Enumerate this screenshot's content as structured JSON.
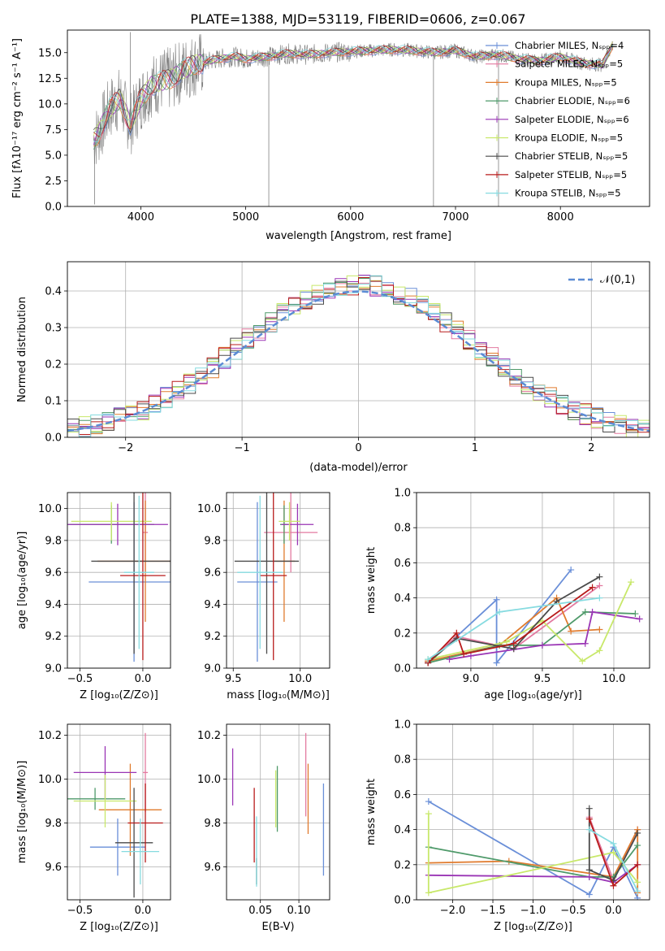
{
  "figure": {
    "title": "PLATE=1388, MJD=53119, FIBERID=0606, z=0.067"
  },
  "colors": {
    "series": [
      "#6a8fd8",
      "#e37aa0",
      "#e07b2e",
      "#4f9a6a",
      "#9a35b5",
      "#c8e86a",
      "#4a4a4a",
      "#b81b1b",
      "#86dbe0"
    ],
    "data_spectrum": "#808080",
    "grid": "#b0b0b0",
    "normal_curve": "#5b8bd4"
  },
  "chart_data": [
    {
      "id": "spectrum",
      "type": "line",
      "xlabel": "wavelength [Angstrom, rest frame]",
      "ylabel": "Flux [fλ10⁻¹⁷ erg cm⁻² s⁻¹ A⁻¹]",
      "xlim": [
        3300,
        8850
      ],
      "ylim": [
        0,
        17.2
      ],
      "xticks": [
        "4000",
        "5000",
        "6000",
        "7000",
        "8000"
      ],
      "yticks": [
        "0.0",
        "2.5",
        "5.0",
        "7.5",
        "10.0",
        "12.5",
        "15.0"
      ],
      "legend_position": "upper right",
      "legend": [
        "Chabrier MILES, Nₛₚₚ=4",
        "Salpeter MILES, Nₛₚₚ=5",
        "Kroupa MILES, Nₛₚₚ=5",
        "Chabrier ELODIE, Nₛₚₚ=6",
        "Salpeter ELODIE, Nₛₚₚ=6",
        "Kroupa ELODIE, Nₛₚₚ=5",
        "Chabrier STELIB, Nₛₚₚ=5",
        "Salpeter STELIB, Nₛₚₚ=5",
        "Kroupa STELIB, Nₛₚₚ=5"
      ],
      "model_envelope": {
        "x": [
          3550,
          3600,
          3700,
          3800,
          3900,
          4000,
          4100,
          4200,
          4300,
          4400,
          4500,
          4600,
          4700,
          4800,
          4900,
          5000,
          5200,
          5400,
          5600,
          5800,
          6000,
          6200,
          6400,
          6600,
          6800,
          7000,
          7200,
          7400,
          7600,
          7800,
          8000,
          8200,
          8400,
          8500
        ],
        "y": [
          6.5,
          7.2,
          9.5,
          10.5,
          8.0,
          10.5,
          11.8,
          12.2,
          12.5,
          13.3,
          13.8,
          14.0,
          14.3,
          14.5,
          14.6,
          14.4,
          14.6,
          14.9,
          14.8,
          15.0,
          15.1,
          15.2,
          15.3,
          15.2,
          15.0,
          15.2,
          14.6,
          14.8,
          14.4,
          14.2,
          14.6,
          14.0,
          13.8,
          15.8
        ]
      },
      "data_spikes": [
        {
          "x": 3560,
          "y": 0.2
        },
        {
          "x": 3900,
          "y": 17.0
        },
        {
          "x": 5220,
          "y": 0.0
        },
        {
          "x": 6790,
          "y": 0.0
        },
        {
          "x": 7410,
          "y": 0.0
        }
      ]
    },
    {
      "id": "residuals",
      "type": "step-histogram",
      "xlabel": "(data-model)/error",
      "ylabel": "Normed distribution",
      "xlim": [
        -2.5,
        2.5
      ],
      "ylim": [
        0,
        0.48
      ],
      "xticks": [
        "−2",
        "−1",
        "0",
        "1",
        "2"
      ],
      "yticks": [
        "0.0",
        "0.1",
        "0.2",
        "0.3",
        "0.4"
      ],
      "legend": [
        "𝒩(0,1)"
      ],
      "legend_position": "upper right",
      "bin_width": 0.1
    },
    {
      "id": "age_vs_Z",
      "type": "errorbar",
      "xlabel": "Z [log₁₀(Z/Z⊙)]",
      "ylabel": "age  [log₁₀(age/yr)]",
      "xlim": [
        -0.6,
        0.22
      ],
      "ylim": [
        9.0,
        10.1
      ],
      "xticks": [
        "−0.5",
        "0.0"
      ],
      "yticks": [
        "9.0",
        "9.2",
        "9.4",
        "9.6",
        "9.8",
        "10.0"
      ],
      "points": [
        {
          "series": 0,
          "x": -0.07,
          "xerr": 0.36,
          "y": 9.54,
          "yerr": 0.5
        },
        {
          "series": 1,
          "x": 0.02,
          "xerr": 0.02,
          "y": 9.85,
          "yerr": 0.25
        },
        {
          "series": 2,
          "x": 0.02,
          "xerr": 0.38,
          "y": 9.67,
          "yerr": 0.38
        },
        {
          "series": 3,
          "x": -0.25,
          "xerr": 0.34,
          "y": 9.9,
          "yerr": 0.12
        },
        {
          "series": 4,
          "x": -0.2,
          "xerr": 0.4,
          "y": 9.9,
          "yerr": 0.13
        },
        {
          "series": 5,
          "x": -0.25,
          "xerr": 0.32,
          "y": 9.92,
          "yerr": 0.12
        },
        {
          "series": 6,
          "x": -0.07,
          "xerr": 0.34,
          "y": 9.67,
          "yerr": 0.58
        },
        {
          "series": 7,
          "x": 0.0,
          "xerr": 0.18,
          "y": 9.58,
          "yerr": 0.53
        },
        {
          "series": 8,
          "x": -0.03,
          "xerr": 0.12,
          "y": 9.6,
          "yerr": 0.48
        }
      ]
    },
    {
      "id": "age_vs_mass",
      "type": "errorbar",
      "xlabel": "mass [log₁₀(M/M⊙)]",
      "xlim": [
        9.45,
        10.22
      ],
      "ylim": [
        9.0,
        10.1
      ],
      "xticks": [
        "9.5",
        "10.0"
      ],
      "yticks": [
        "9.0",
        "9.2",
        "9.4",
        "9.6",
        "9.8",
        "10.0"
      ],
      "points": [
        {
          "series": 0,
          "x": 9.68,
          "xerr": 0.15,
          "y": 9.54,
          "yerr": 0.5
        },
        {
          "series": 1,
          "x": 9.93,
          "xerr": 0.2,
          "y": 9.85,
          "yerr": 0.25
        },
        {
          "series": 2,
          "x": 9.88,
          "xerr": 0.08,
          "y": 9.67,
          "yerr": 0.38
        },
        {
          "series": 3,
          "x": 9.88,
          "xerr": 0.03,
          "y": 9.9,
          "yerr": 0.12
        },
        {
          "series": 4,
          "x": 9.98,
          "xerr": 0.12,
          "y": 9.9,
          "yerr": 0.13
        },
        {
          "series": 5,
          "x": 9.92,
          "xerr": 0.08,
          "y": 9.92,
          "yerr": 0.12
        },
        {
          "series": 6,
          "x": 9.75,
          "xerr": 0.24,
          "y": 9.67,
          "yerr": 0.58
        },
        {
          "series": 7,
          "x": 9.8,
          "xerr": 0.1,
          "y": 9.58,
          "yerr": 0.53
        },
        {
          "series": 8,
          "x": 9.7,
          "xerr": 0.17,
          "y": 9.6,
          "yerr": 0.48
        }
      ]
    },
    {
      "id": "weight_vs_age",
      "type": "line",
      "xlabel": "age  [log₁₀(age/yr)]",
      "ylabel": "mass weight",
      "xlim": [
        8.62,
        10.25
      ],
      "ylim": [
        0,
        1.0
      ],
      "xticks": [
        "9.0",
        "9.5",
        "10.0"
      ],
      "yticks": [
        "0.0",
        "0.2",
        "0.4",
        "0.6",
        "0.8",
        "1.0"
      ],
      "series": [
        {
          "x": [
            8.7,
            9.18,
            9.18,
            9.7
          ],
          "y": [
            0.03,
            0.39,
            0.03,
            0.56
          ]
        },
        {
          "x": [
            8.7,
            8.9,
            9.3,
            9.9
          ],
          "y": [
            0.04,
            0.18,
            0.11,
            0.47
          ]
        },
        {
          "x": [
            8.7,
            9.2,
            9.6,
            9.7,
            9.9
          ],
          "y": [
            0.04,
            0.13,
            0.4,
            0.21,
            0.22
          ]
        },
        {
          "x": [
            8.7,
            9.2,
            9.5,
            9.8,
            10.15
          ],
          "y": [
            0.03,
            0.13,
            0.13,
            0.32,
            0.31
          ]
        },
        {
          "x": [
            8.85,
            9.0,
            9.5,
            9.8,
            9.85,
            10.18
          ],
          "y": [
            0.05,
            0.07,
            0.13,
            0.14,
            0.32,
            0.28
          ]
        },
        {
          "x": [
            8.7,
            9.25,
            9.5,
            9.78,
            9.9,
            10.12
          ],
          "y": [
            0.05,
            0.15,
            0.27,
            0.04,
            0.1,
            0.49
          ]
        },
        {
          "x": [
            8.7,
            8.9,
            9.3,
            9.6,
            9.9
          ],
          "y": [
            0.03,
            0.17,
            0.11,
            0.38,
            0.52
          ]
        },
        {
          "x": [
            8.7,
            8.9,
            8.95,
            9.3,
            9.85
          ],
          "y": [
            0.03,
            0.2,
            0.08,
            0.14,
            0.46
          ]
        },
        {
          "x": [
            8.7,
            9.2,
            9.9
          ],
          "y": [
            0.05,
            0.32,
            0.4
          ]
        }
      ]
    },
    {
      "id": "mass_vs_Z",
      "type": "errorbar",
      "xlabel": "Z [log₁₀(Z/Z⊙)]",
      "ylabel": "mass [log₁₀(M/M⊙)]",
      "xlim": [
        -0.6,
        0.22
      ],
      "ylim": [
        9.45,
        10.25
      ],
      "xticks": [
        "−0.5",
        "0.0"
      ],
      "yticks": [
        "9.6",
        "9.8",
        "10.0",
        "10.2"
      ],
      "points": [
        {
          "series": 0,
          "x": -0.2,
          "xerr": 0.22,
          "y": 9.69,
          "yerr": 0.13
        },
        {
          "series": 1,
          "x": 0.02,
          "xerr": 0.02,
          "y": 10.03,
          "yerr": 0.18
        },
        {
          "series": 2,
          "x": -0.1,
          "xerr": 0.25,
          "y": 9.86,
          "yerr": 0.21
        },
        {
          "series": 3,
          "x": -0.38,
          "xerr": 0.24,
          "y": 9.91,
          "yerr": 0.05
        },
        {
          "series": 4,
          "x": -0.3,
          "xerr": 0.25,
          "y": 10.03,
          "yerr": 0.12
        },
        {
          "series": 5,
          "x": -0.3,
          "xerr": 0.25,
          "y": 9.9,
          "yerr": 0.12
        },
        {
          "series": 6,
          "x": -0.07,
          "xerr": 0.15,
          "y": 9.71,
          "yerr": 0.25
        },
        {
          "series": 7,
          "x": 0.02,
          "xerr": 0.14,
          "y": 9.8,
          "yerr": 0.18
        },
        {
          "series": 8,
          "x": -0.02,
          "xerr": 0.15,
          "y": 9.67,
          "yerr": 0.15
        }
      ]
    },
    {
      "id": "mass_vs_ebv",
      "type": "errorbar",
      "xlabel": "E(B-V)",
      "xlim": [
        0.006,
        0.14
      ],
      "ylim": [
        9.45,
        10.25
      ],
      "xticks": [
        "0.05",
        "0.10"
      ],
      "yticks": [
        "9.6",
        "9.8",
        "10.0",
        "10.2"
      ],
      "points": [
        {
          "series": 0,
          "x": 0.132,
          "y": 9.77,
          "yerr": 0.21
        },
        {
          "series": 1,
          "x": 0.109,
          "y": 10.02,
          "yerr": 0.19
        },
        {
          "series": 2,
          "x": 0.112,
          "y": 9.91,
          "yerr": 0.16
        },
        {
          "series": 3,
          "x": 0.072,
          "y": 9.91,
          "yerr": 0.15
        },
        {
          "series": 4,
          "x": 0.014,
          "y": 10.01,
          "yerr": 0.13
        },
        {
          "series": 5,
          "x": 0.07,
          "y": 9.91,
          "yerr": 0.13
        },
        {
          "series": 6,
          "x": 0.045,
          "y": 9.58,
          "yerr": 0.06
        },
        {
          "series": 7,
          "x": 0.042,
          "y": 9.79,
          "yerr": 0.17
        },
        {
          "series": 8,
          "x": 0.045,
          "y": 9.67,
          "yerr": 0.16
        }
      ]
    },
    {
      "id": "weight_vs_Z",
      "type": "line",
      "xlabel": "Z [log₁₀(Z/Z⊙)]",
      "ylabel": "mass weight",
      "xlim": [
        -2.45,
        0.45
      ],
      "ylim": [
        0,
        1.0
      ],
      "xticks": [
        "−2.0",
        "−1.5",
        "−1.0",
        "−0.5",
        "0.0"
      ],
      "yticks": [
        "0.0",
        "0.2",
        "0.4",
        "0.6",
        "0.8",
        "1.0"
      ],
      "series": [
        {
          "x": [
            -2.3,
            -0.3,
            0.0,
            0.3
          ],
          "y": [
            0.56,
            0.03,
            0.3,
            0.01
          ]
        },
        {
          "x": [
            -0.3,
            0.0,
            0.3
          ],
          "y": [
            0.47,
            0.11,
            0.4
          ]
        },
        {
          "x": [
            -2.3,
            -1.3,
            0.0,
            0.3,
            0.3
          ],
          "y": [
            0.21,
            0.22,
            0.13,
            0.4,
            0.04
          ]
        },
        {
          "x": [
            -2.3,
            -0.3,
            0.0,
            0.3
          ],
          "y": [
            0.3,
            0.13,
            0.13,
            0.31
          ]
        },
        {
          "x": [
            -2.3,
            -0.3,
            0.0,
            0.3
          ],
          "y": [
            0.14,
            0.13,
            0.1,
            0.2
          ]
        },
        {
          "x": [
            -2.3,
            -2.3,
            0.0,
            0.3
          ],
          "y": [
            0.49,
            0.04,
            0.27,
            0.1
          ]
        },
        {
          "x": [
            -0.3,
            -0.3,
            0.0,
            0.3
          ],
          "y": [
            0.52,
            0.17,
            0.11,
            0.38
          ]
        },
        {
          "x": [
            -0.3,
            0.0,
            0.3
          ],
          "y": [
            0.46,
            0.08,
            0.2
          ]
        },
        {
          "x": [
            -0.3,
            0.0,
            0.3
          ],
          "y": [
            0.4,
            0.32,
            0.05
          ]
        }
      ]
    }
  ]
}
